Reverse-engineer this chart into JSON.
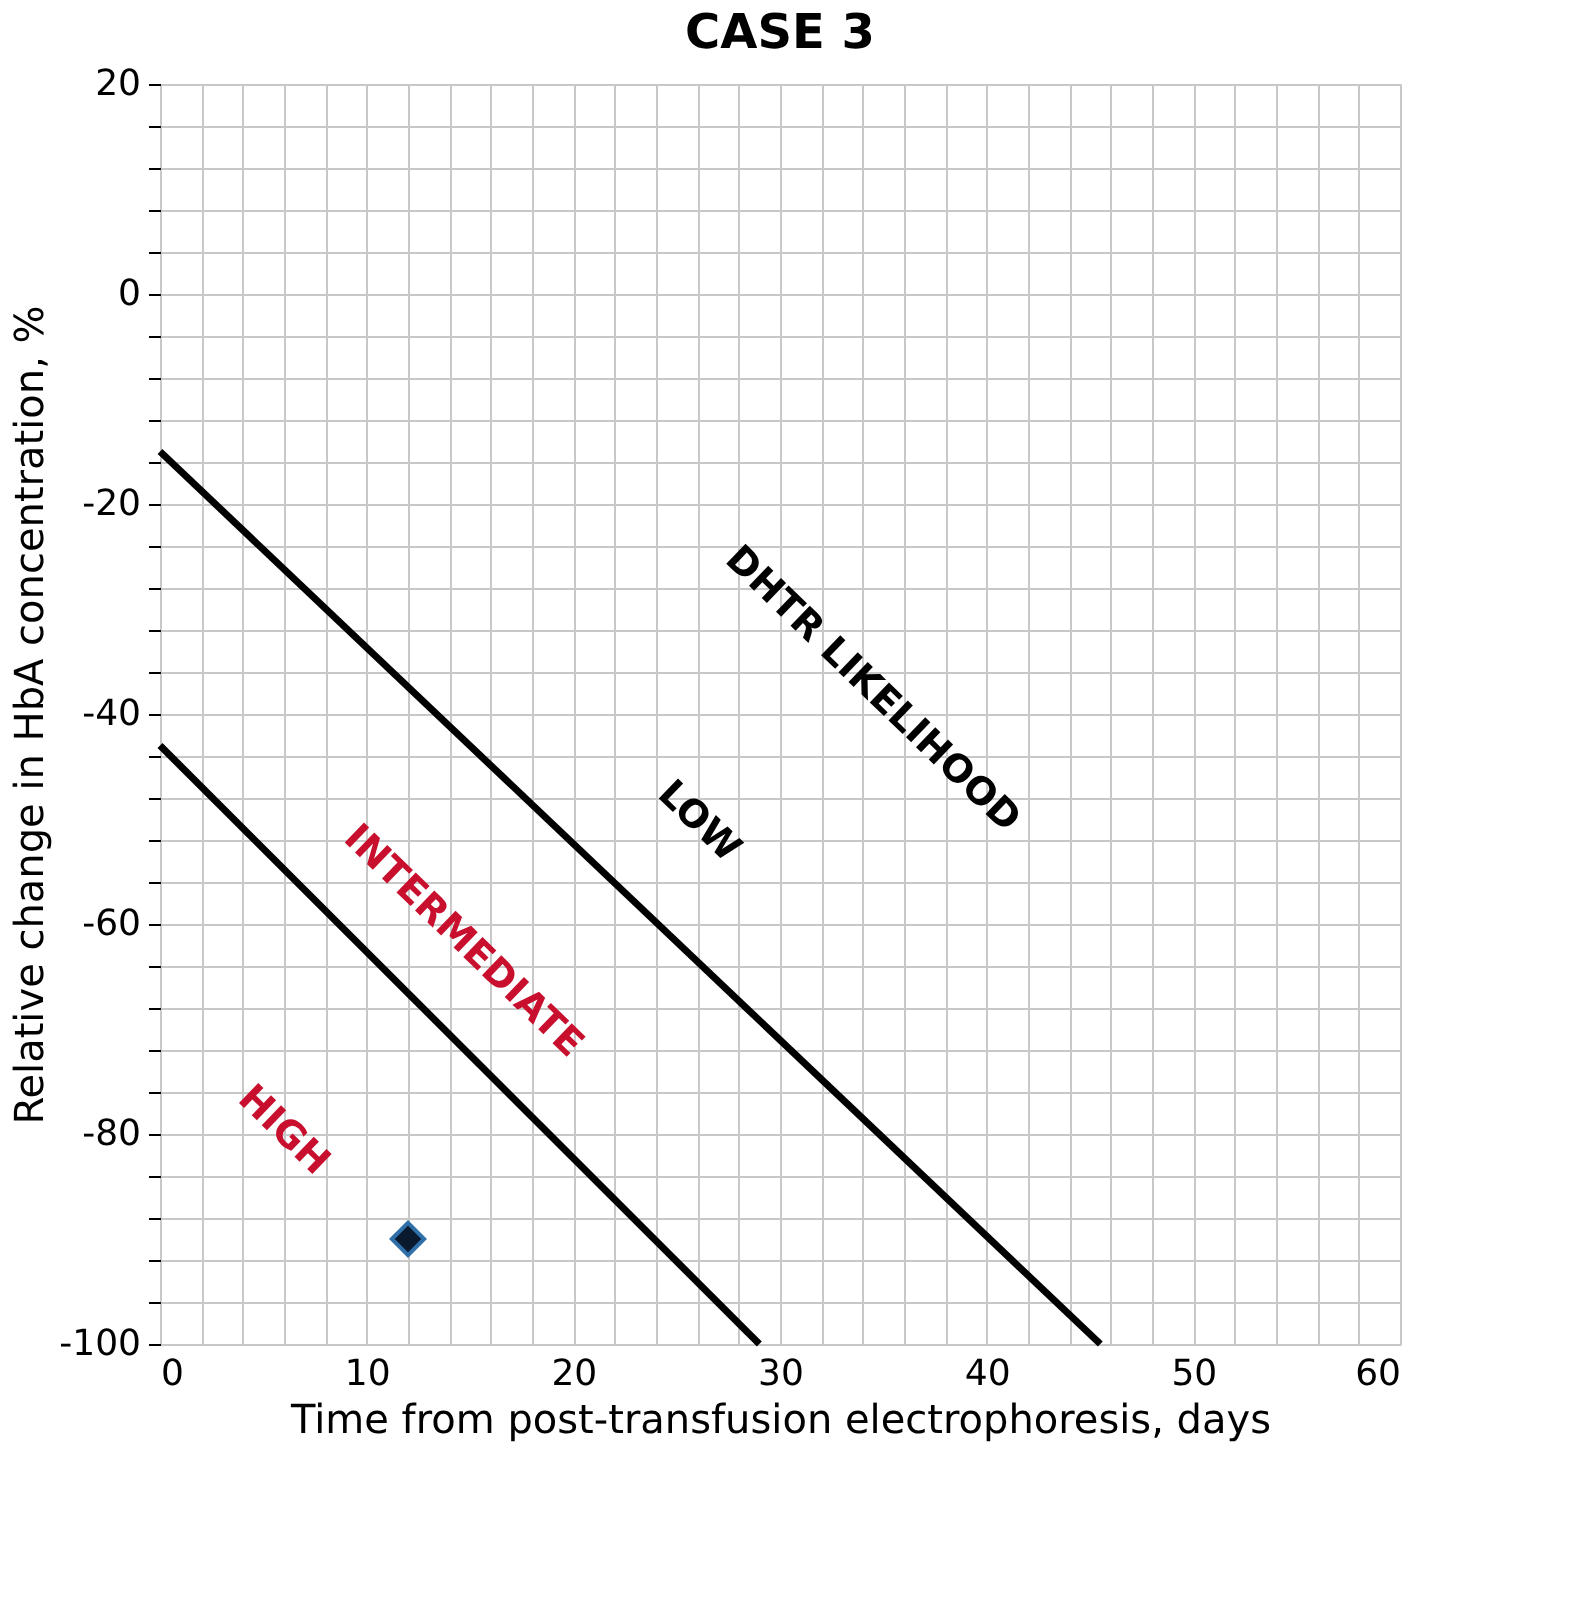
{
  "chart_data": {
    "type": "line",
    "title": "CASE 3",
    "xlabel": "Time from post-transfusion electrophoresis, days",
    "ylabel": "Relative change in HbA concentration, %",
    "xlim": [
      0,
      60
    ],
    "ylim": [
      -100,
      20
    ],
    "xticks": [
      0,
      {
        "value": 2,
        "label": null
      },
      {
        "value": 4,
        "label": null
      },
      {
        "value": 6,
        "label": null
      },
      {
        "value": 8,
        "label": null
      },
      10,
      {
        "value": 12,
        "label": null
      },
      {
        "value": 14,
        "label": null
      },
      {
        "value": 16,
        "label": null
      },
      {
        "value": 18,
        "label": null
      },
      20,
      {
        "value": 22,
        "label": null
      },
      {
        "value": 24,
        "label": null
      },
      {
        "value": 26,
        "label": null
      },
      {
        "value": 28,
        "label": null
      },
      30,
      {
        "value": 32,
        "label": null
      },
      {
        "value": 34,
        "label": null
      },
      {
        "value": 36,
        "label": null
      },
      {
        "value": 38,
        "label": null
      },
      40,
      {
        "value": 42,
        "label": null
      },
      {
        "value": 44,
        "label": null
      },
      {
        "value": 46,
        "label": null
      },
      {
        "value": 48,
        "label": null
      },
      50,
      {
        "value": 52,
        "label": null
      },
      {
        "value": 54,
        "label": null
      },
      {
        "value": 56,
        "label": null
      },
      {
        "value": 58,
        "label": null
      },
      60
    ],
    "yticks": [
      -100,
      {
        "value": -96,
        "label": null
      },
      {
        "value": -92,
        "label": null
      },
      {
        "value": -88,
        "label": null
      },
      {
        "value": -84,
        "label": null
      },
      -80,
      {
        "value": -76,
        "label": null
      },
      {
        "value": -72,
        "label": null
      },
      {
        "value": -68,
        "label": null
      },
      {
        "value": -64,
        "label": null
      },
      -60,
      {
        "value": -56,
        "label": null
      },
      {
        "value": -52,
        "label": null
      },
      {
        "value": -48,
        "label": null
      },
      {
        "value": -44,
        "label": null
      },
      -40,
      {
        "value": -36,
        "label": null
      },
      {
        "value": -32,
        "label": null
      },
      {
        "value": -28,
        "label": null
      },
      {
        "value": -24,
        "label": null
      },
      -20,
      {
        "value": -16,
        "label": null
      },
      {
        "value": -12,
        "label": null
      },
      {
        "value": -8,
        "label": null
      },
      {
        "value": -4,
        "label": null
      },
      0,
      {
        "value": 4,
        "label": null
      },
      {
        "value": 8,
        "label": null
      },
      {
        "value": 12,
        "label": null
      },
      {
        "value": 16,
        "label": null
      },
      20
    ],
    "grid": true,
    "series": [
      {
        "color": "#000000",
        "x": [
          0,
          45.5
        ],
        "values": [
          -15,
          -100
        ]
      },
      {
        "color": "#000000",
        "x": [
          0,
          29
        ],
        "values": [
          -43,
          -100
        ]
      },
      {
        "type": "scatter",
        "marker": "diamond",
        "color": "#0a1a2e",
        "x": [
          12
        ],
        "values": [
          -90
        ]
      }
    ],
    "annotations": [
      "DHTR LIKELIHOOD",
      "LOW",
      "INTERMEDIATE",
      "HIGH"
    ]
  }
}
